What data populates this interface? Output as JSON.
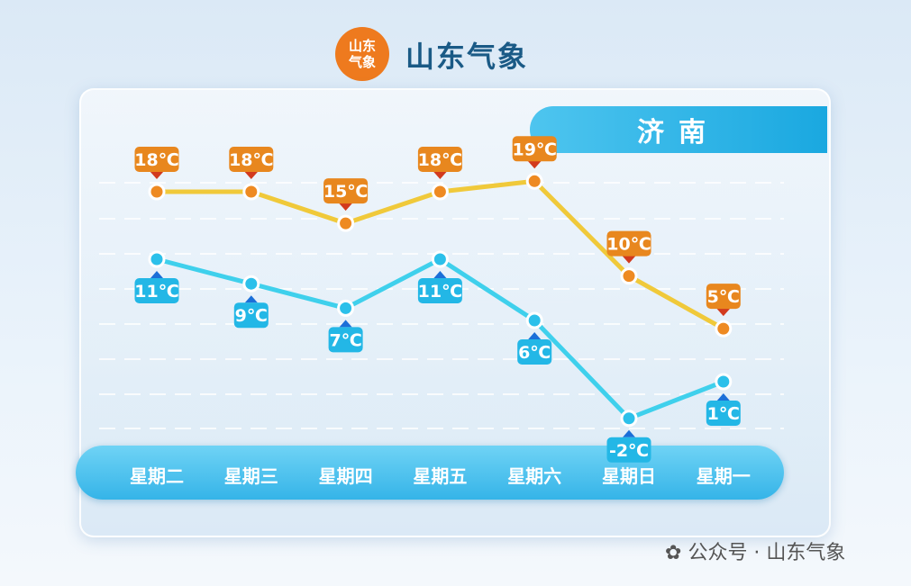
{
  "header": {
    "logo_text": "山东气象",
    "brand": "山东气象"
  },
  "city": "济南",
  "watermark": "公众号 · 山东气象",
  "chart_data": {
    "type": "line",
    "categories": [
      "星期二",
      "星期三",
      "星期四",
      "星期五",
      "星期六",
      "星期日",
      "星期一"
    ],
    "series": [
      {
        "values": [
          18,
          18,
          15,
          18,
          19,
          10,
          5
        ],
        "color": "#f0c93a",
        "label_color": "#e8871e"
      },
      {
        "values": [
          11,
          9,
          7,
          11,
          6,
          -2,
          1
        ],
        "color": "#3fd0ec",
        "label_color": "#23b7e6"
      }
    ],
    "unit": "℃",
    "grid": true
  }
}
